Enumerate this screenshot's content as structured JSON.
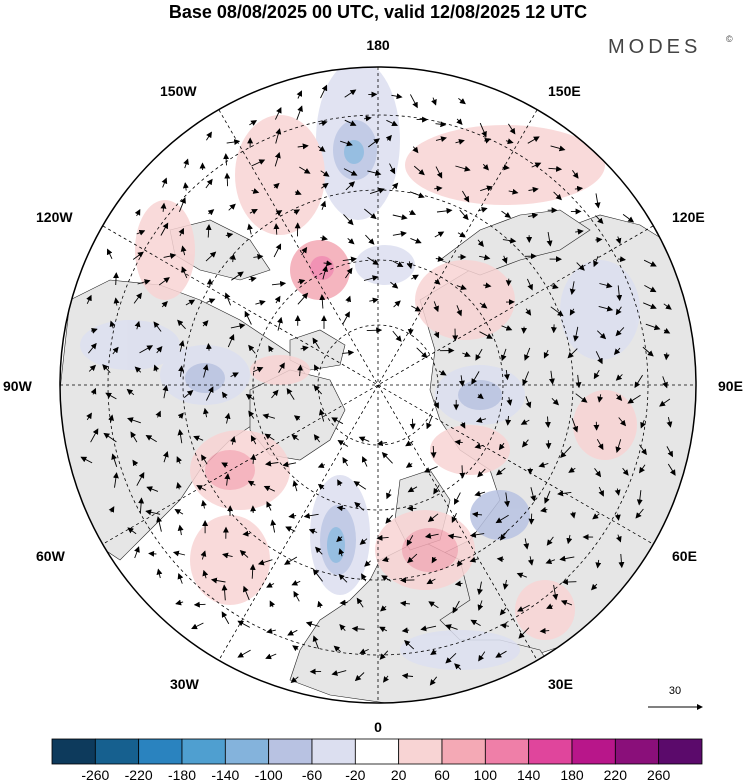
{
  "title": "Base 08/08/2025 00 UTC, valid 12/08/2025 12 UTC",
  "brand": {
    "name": "MODES",
    "mark": "©"
  },
  "longitude_labels": {
    "top": "180",
    "bottom": "0",
    "left": "90W",
    "right": "90E",
    "upper_left_1": "150W",
    "upper_left_2": "120W",
    "upper_right_1": "150E",
    "upper_right_2": "120E",
    "lower_left_1": "60W",
    "lower_left_2": "30W",
    "lower_right_1": "60E",
    "lower_right_2": "30E"
  },
  "reference_vector": {
    "label": "30"
  },
  "colorbar": {
    "colors": [
      "#0d3a5c",
      "#16608f",
      "#2a83bf",
      "#4f9fd0",
      "#84b3dc",
      "#b8c2e2",
      "#dcdff0",
      "#ffffff",
      "#f8d4d4",
      "#f4a9b5",
      "#ef7fa8",
      "#e0459c",
      "#b8168a",
      "#8a0f7a",
      "#5b0a6b"
    ],
    "labels": [
      "-260",
      "-220",
      "-180",
      "-140",
      "-100",
      "-60",
      "-20",
      "20",
      "60",
      "100",
      "140",
      "180",
      "220",
      "260"
    ]
  },
  "colors": {
    "land": "#e6e6e6",
    "ocean": "#ffffff",
    "positive_light": "#f8d4d4",
    "positive_mid": "#f4a9b5",
    "positive_strong": "#ef7fa8",
    "negative_light": "#dcdff0",
    "negative_mid": "#b8c2e2",
    "negative_strong": "#84b3dc"
  }
}
